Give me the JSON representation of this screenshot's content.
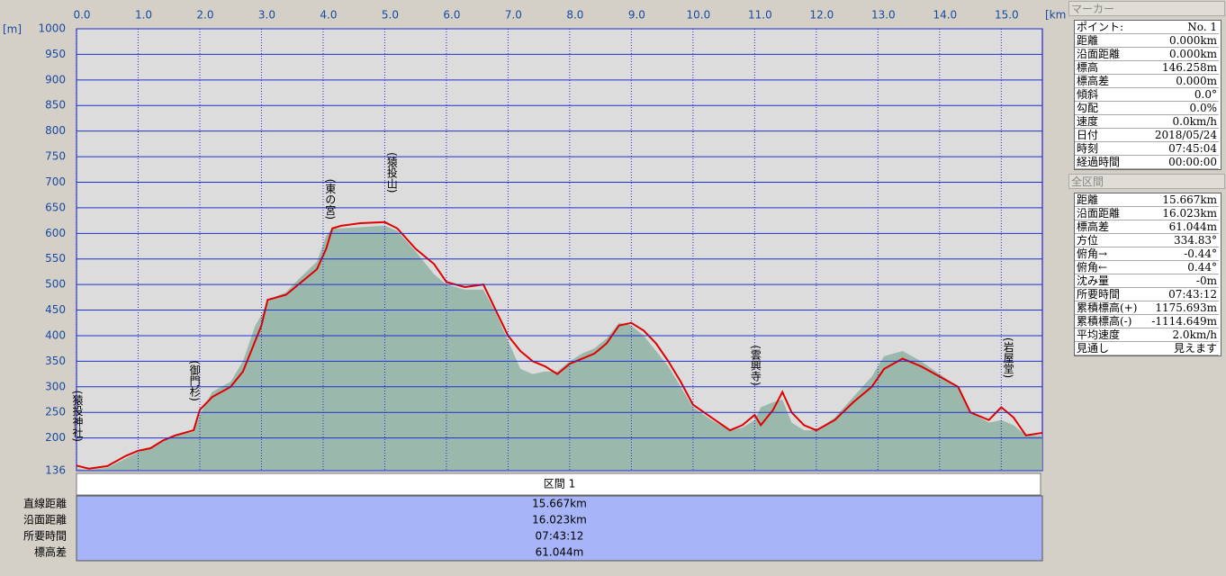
{
  "chart_data": {
    "type": "elevation-profile",
    "y_unit": "[m]",
    "x_unit": "[km]",
    "xlim": [
      0,
      15.667
    ],
    "ylim": [
      136,
      1000
    ],
    "xticks": [
      {
        "value": 0,
        "label": "0.0"
      },
      {
        "value": 1,
        "label": "1.0"
      },
      {
        "value": 2,
        "label": "2.0"
      },
      {
        "value": 3,
        "label": "3.0"
      },
      {
        "value": 4,
        "label": "4.0"
      },
      {
        "value": 5,
        "label": "5.0"
      },
      {
        "value": 6,
        "label": "6.0"
      },
      {
        "value": 7,
        "label": "7.0"
      },
      {
        "value": 8,
        "label": "8.0"
      },
      {
        "value": 9,
        "label": "9.0"
      },
      {
        "value": 10,
        "label": "10.0"
      },
      {
        "value": 11,
        "label": "11.0"
      },
      {
        "value": 12,
        "label": "12.0"
      },
      {
        "value": 13,
        "label": "13.0"
      },
      {
        "value": 14,
        "label": "14.0"
      },
      {
        "value": 15,
        "label": "15.0"
      }
    ],
    "yticks": [
      136,
      200,
      250,
      300,
      350,
      400,
      450,
      500,
      550,
      600,
      650,
      700,
      750,
      800,
      850,
      900,
      950,
      1000
    ],
    "grid": true,
    "x": [
      0,
      0.2,
      0.5,
      0.8,
      1.0,
      1.2,
      1.4,
      1.6,
      1.9,
      2.0,
      2.2,
      2.5,
      2.7,
      2.9,
      3.0,
      3.1,
      3.4,
      3.6,
      3.9,
      4.05,
      4.15,
      4.3,
      4.6,
      5.0,
      5.2,
      5.5,
      5.8,
      6.0,
      6.3,
      6.6,
      6.8,
      7.0,
      7.2,
      7.4,
      7.6,
      7.8,
      8.0,
      8.2,
      8.4,
      8.6,
      8.8,
      9.0,
      9.2,
      9.4,
      9.6,
      9.8,
      10.0,
      10.3,
      10.6,
      10.8,
      11.0,
      11.1,
      11.3,
      11.45,
      11.6,
      11.8,
      12.0,
      12.3,
      12.6,
      12.9,
      13.1,
      13.4,
      13.7,
      14.0,
      14.3,
      14.5,
      14.8,
      15.0,
      15.2,
      15.4,
      15.667
    ],
    "series": [
      {
        "style": "area",
        "color": "#8fb1a3",
        "values": [
          140,
          138,
          142,
          160,
          172,
          182,
          195,
          205,
          212,
          245,
          290,
          310,
          350,
          420,
          440,
          470,
          485,
          510,
          545,
          595,
          610,
          610,
          612,
          615,
          605,
          565,
          520,
          500,
          490,
          490,
          445,
          390,
          335,
          325,
          330,
          330,
          350,
          365,
          375,
          395,
          425,
          420,
          400,
          370,
          340,
          300,
          260,
          235,
          215,
          220,
          235,
          260,
          270,
          275,
          230,
          215,
          215,
          240,
          280,
          320,
          360,
          370,
          350,
          325,
          300,
          250,
          230,
          235,
          225,
          205,
          205
        ]
      },
      {
        "style": "line",
        "color": "#e00000",
        "values": [
          146,
          140,
          145,
          165,
          175,
          180,
          195,
          205,
          215,
          255,
          280,
          300,
          330,
          390,
          420,
          470,
          480,
          500,
          530,
          570,
          610,
          615,
          620,
          622,
          610,
          570,
          540,
          505,
          495,
          500,
          450,
          400,
          370,
          350,
          340,
          325,
          345,
          355,
          365,
          385,
          420,
          425,
          410,
          385,
          350,
          310,
          265,
          240,
          215,
          225,
          245,
          225,
          255,
          290,
          250,
          225,
          215,
          235,
          270,
          300,
          335,
          355,
          340,
          320,
          300,
          250,
          235,
          260,
          240,
          205,
          210
        ]
      }
    ],
    "annotations": [
      {
        "text": "(猿投神社)",
        "x": 0
      },
      {
        "text": "(御門杉)",
        "x": 1.9
      },
      {
        "text": "(東の宮)",
        "x": 4.1
      },
      {
        "text": "(猿投山)",
        "x": 5.1
      },
      {
        "text": "(雲興寺)",
        "x": 11.0
      },
      {
        "text": "(岩屋堂)",
        "x": 15.1
      }
    ]
  },
  "section_table": {
    "header": "区間 1",
    "rows": [
      [
        "直線距離",
        "15.667km"
      ],
      [
        "沿面距離",
        "16.023km"
      ],
      [
        "所要時間",
        "07:43:12"
      ],
      [
        "標高差",
        "61.044m"
      ]
    ]
  },
  "marker": {
    "title": "マーカー",
    "rows": [
      [
        "ポイント:",
        "No. 1"
      ],
      [
        "距離",
        "0.000km"
      ],
      [
        "沿面距離",
        "0.000km"
      ],
      [
        "標高",
        "146.258m"
      ],
      [
        "標高差",
        "0.000m"
      ],
      [
        "傾斜",
        "0.0°"
      ],
      [
        "勾配",
        "0.0%"
      ],
      [
        "速度",
        "0.0km/h"
      ],
      [
        "日付",
        "2018/05/24"
      ],
      [
        "時刻",
        "07:45:04"
      ],
      [
        "経過時間",
        "00:00:00"
      ]
    ]
  },
  "total": {
    "title": "全区間",
    "rows": [
      [
        "距離",
        "15.667km"
      ],
      [
        "沿面距離",
        "16.023km"
      ],
      [
        "標高差",
        "61.044m"
      ],
      [
        "方位",
        "334.83°"
      ],
      [
        "俯角→",
        "-0.44°"
      ],
      [
        "俯角←",
        "0.44°"
      ],
      [
        "沈み量",
        "-0m"
      ],
      [
        "所要時間",
        "07:43:12"
      ],
      [
        "累積標高(+)",
        "1175.693m"
      ],
      [
        "累積標高(-)",
        "-1114.649m"
      ],
      [
        "平均速度",
        "2.0km/h"
      ],
      [
        "見通し",
        "見えます"
      ]
    ]
  }
}
